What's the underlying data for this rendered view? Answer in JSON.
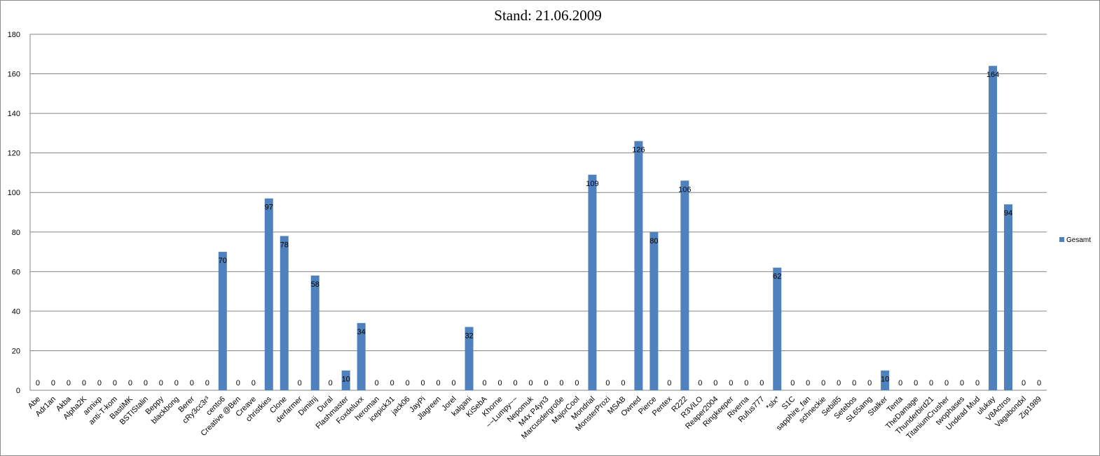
{
  "chart_data": {
    "type": "bar",
    "title": "Stand: 21.06.2009",
    "xlabel": "",
    "ylabel": "",
    "ylim": [
      0,
      180
    ],
    "yticks": [
      0,
      20,
      40,
      60,
      80,
      100,
      120,
      140,
      160,
      180
    ],
    "grid": true,
    "legend_position": "right",
    "bar_color": "#4f81bd",
    "categories": [
      "Abe",
      "Adr1an",
      "Akba",
      "Alpha2K",
      "annixp",
      "anti-T-kom",
      "BastiMK",
      "BSTIStalin",
      "Beppy",
      "blackbong",
      "Berer",
      "cRy3cc3r³",
      "cento6",
      "Creative @Ben",
      "Creave",
      "christkies",
      "Clone",
      "derfarmer",
      "Dimitrij",
      "Dural",
      "Flashmaster",
      "Foxdeluxx",
      "heroman",
      "icepick31",
      "jack06",
      "JayPi",
      "Jlagreen",
      "Jorel",
      "kalgani",
      "KiSebA",
      "Khorne",
      "~~Lumpy~~",
      "Nepomuk",
      "M4x P4yn3",
      "Marcusdergroße",
      "MajorCool",
      "Mondrial",
      "MonsterProzi",
      "MSAB",
      "Owned",
      "Pierce",
      "Pentex",
      "R222",
      "R3ViLO",
      "Reaper2004",
      "Ringkeeper",
      "Riverna",
      "Rufus777",
      "*slx*",
      "S1C",
      "sapphire_fan",
      "schneckie",
      "Sebi85",
      "Setebos",
      "SL65amg",
      "Stalker",
      "Tenta",
      "TheDamage",
      "Thunderbird21",
      "TitaniumCrusher",
      "twophases",
      "Undead Mud",
      "ulukay",
      "V8Actros",
      "Vagabondxl",
      "Zip1989"
    ],
    "series": [
      {
        "name": "Gesamt",
        "values": [
          0,
          0,
          0,
          0,
          0,
          0,
          0,
          0,
          0,
          0,
          0,
          0,
          70,
          0,
          0,
          97,
          78,
          0,
          58,
          0,
          10,
          34,
          0,
          0,
          0,
          0,
          0,
          0,
          32,
          0,
          0,
          0,
          0,
          0,
          0,
          0,
          109,
          0,
          0,
          126,
          80,
          0,
          106,
          0,
          0,
          0,
          0,
          0,
          62,
          0,
          0,
          0,
          0,
          0,
          0,
          10,
          0,
          0,
          0,
          0,
          0,
          0,
          164,
          94,
          0,
          0
        ]
      }
    ]
  }
}
